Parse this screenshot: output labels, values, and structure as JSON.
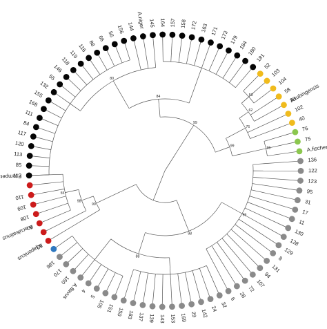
{
  "figure": {
    "colors": {
      "black": "#050505",
      "grey": "#8a8a8a",
      "yellow": "#f0bb1c",
      "green": "#8bc74e",
      "blue": "#2e78c0",
      "red": "#cc1b1b",
      "branch": "#555555",
      "text": "#222222"
    },
    "leaves": [
      {
        "label": "112",
        "group": "black"
      },
      {
        "label": "85",
        "group": "black"
      },
      {
        "label": "113",
        "group": "black"
      },
      {
        "label": "120",
        "group": "black"
      },
      {
        "label": "117",
        "group": "black"
      },
      {
        "label": "84",
        "group": "black"
      },
      {
        "label": "111",
        "group": "black"
      },
      {
        "label": "168",
        "group": "black"
      },
      {
        "label": "155",
        "group": "black"
      },
      {
        "label": "132",
        "group": "black"
      },
      {
        "label": "55",
        "group": "black"
      },
      {
        "label": "146",
        "group": "black"
      },
      {
        "label": "118",
        "group": "black"
      },
      {
        "label": "119",
        "group": "black"
      },
      {
        "label": "116",
        "group": "black"
      },
      {
        "label": "88",
        "group": "black"
      },
      {
        "label": "66",
        "group": "black"
      },
      {
        "label": "56",
        "group": "black"
      },
      {
        "label": "156",
        "group": "black"
      },
      {
        "label": "144",
        "group": "black"
      },
      {
        "label": "",
        "group": "black"
      },
      {
        "label": "145",
        "group": "black"
      },
      {
        "label": "164",
        "group": "black"
      },
      {
        "label": "157",
        "group": "black"
      },
      {
        "label": "158",
        "group": "black"
      },
      {
        "label": "172",
        "group": "black"
      },
      {
        "label": "163",
        "group": "black"
      },
      {
        "label": "171",
        "group": "black"
      },
      {
        "label": "173",
        "group": "black"
      },
      {
        "label": "179",
        "group": "black"
      },
      {
        "label": "184",
        "group": "black"
      },
      {
        "label": "180",
        "group": "black"
      },
      {
        "label": "181",
        "group": "black"
      },
      {
        "label": "52",
        "group": "yellow"
      },
      {
        "label": "103",
        "group": "yellow"
      },
      {
        "label": "104",
        "group": "yellow"
      },
      {
        "label": "58",
        "group": "yellow"
      },
      {
        "label": "38",
        "group": "yellow"
      },
      {
        "label": "102",
        "group": "yellow"
      },
      {
        "label": "40",
        "group": "yellow"
      },
      {
        "label": "76",
        "group": "green"
      },
      {
        "label": "75",
        "group": "green"
      },
      {
        "label": "",
        "group": "green"
      },
      {
        "label": "136",
        "group": "grey"
      },
      {
        "label": "122",
        "group": "grey"
      },
      {
        "label": "123",
        "group": "grey"
      },
      {
        "label": "95",
        "group": "grey"
      },
      {
        "label": "31",
        "group": "grey"
      },
      {
        "label": "17",
        "group": "grey"
      },
      {
        "label": "11",
        "group": "grey"
      },
      {
        "label": "130",
        "group": "grey"
      },
      {
        "label": "128",
        "group": "grey"
      },
      {
        "label": "129",
        "group": "grey"
      },
      {
        "label": "8",
        "group": "grey"
      },
      {
        "label": "131",
        "group": "grey"
      },
      {
        "label": "94",
        "group": "grey"
      },
      {
        "label": "107",
        "group": "grey"
      },
      {
        "label": "72",
        "group": "grey"
      },
      {
        "label": "28",
        "group": "grey"
      },
      {
        "label": "6",
        "group": "grey"
      },
      {
        "label": "32",
        "group": "grey"
      },
      {
        "label": "24",
        "group": "grey"
      },
      {
        "label": "142",
        "group": "grey"
      },
      {
        "label": "29",
        "group": "grey"
      },
      {
        "label": "169",
        "group": "grey"
      },
      {
        "label": "153",
        "group": "grey"
      },
      {
        "label": "143",
        "group": "grey"
      },
      {
        "label": "139",
        "group": "grey"
      },
      {
        "label": "137",
        "group": "grey"
      },
      {
        "label": "183",
        "group": "grey"
      },
      {
        "label": "150",
        "group": "grey"
      },
      {
        "label": "151",
        "group": "grey"
      },
      {
        "label": "105",
        "group": "grey"
      },
      {
        "label": "5",
        "group": "grey"
      },
      {
        "label": "4",
        "group": "grey"
      },
      {
        "label": "",
        "group": "grey"
      },
      {
        "label": "160",
        "group": "grey"
      },
      {
        "label": "170",
        "group": "grey"
      },
      {
        "label": "186",
        "group": "grey"
      },
      {
        "label": "",
        "group": "blue"
      },
      {
        "label": "59",
        "group": "red"
      },
      {
        "label": "",
        "group": "red"
      },
      {
        "label": "60",
        "group": "red"
      },
      {
        "label": "108",
        "group": "red"
      },
      {
        "label": "109",
        "group": "red"
      },
      {
        "label": "110",
        "group": "red"
      },
      {
        "label": "",
        "group": "red"
      }
    ],
    "species_labels": [
      {
        "text": "A.niger",
        "leaf": 20
      },
      {
        "text": "A.tubingensis",
        "leaf": 37
      },
      {
        "text": "A.fischeri",
        "leaf": 42
      },
      {
        "text": "A.flavus",
        "leaf": 75
      },
      {
        "text": "A.japonicus",
        "leaf": 80
      },
      {
        "text": "A.aculeatinus",
        "leaf": 82
      },
      {
        "text": "F.temperatum",
        "leaf": 87
      }
    ],
    "bootstrap_values": [
      {
        "text": "99",
        "node": "n_main_upper"
      },
      {
        "text": "98",
        "node": "n_grey"
      },
      {
        "text": "99",
        "node": "n_grey_b"
      },
      {
        "text": "88",
        "node": "n_grey_c"
      },
      {
        "text": "99",
        "node": "n_red_blue"
      },
      {
        "text": "98",
        "node": "n_red"
      },
      {
        "text": "55",
        "node": "n_red_b"
      },
      {
        "text": "84",
        "node": "n_black"
      },
      {
        "text": "80",
        "node": "n_black_b"
      },
      {
        "text": "99",
        "node": "n_yg"
      },
      {
        "text": "96",
        "node": "n_green"
      },
      {
        "text": "76",
        "node": "n_yellow"
      },
      {
        "text": "62",
        "node": "n_yellow_b"
      },
      {
        "text": "53",
        "node": "n_yellow_c"
      }
    ]
  }
}
